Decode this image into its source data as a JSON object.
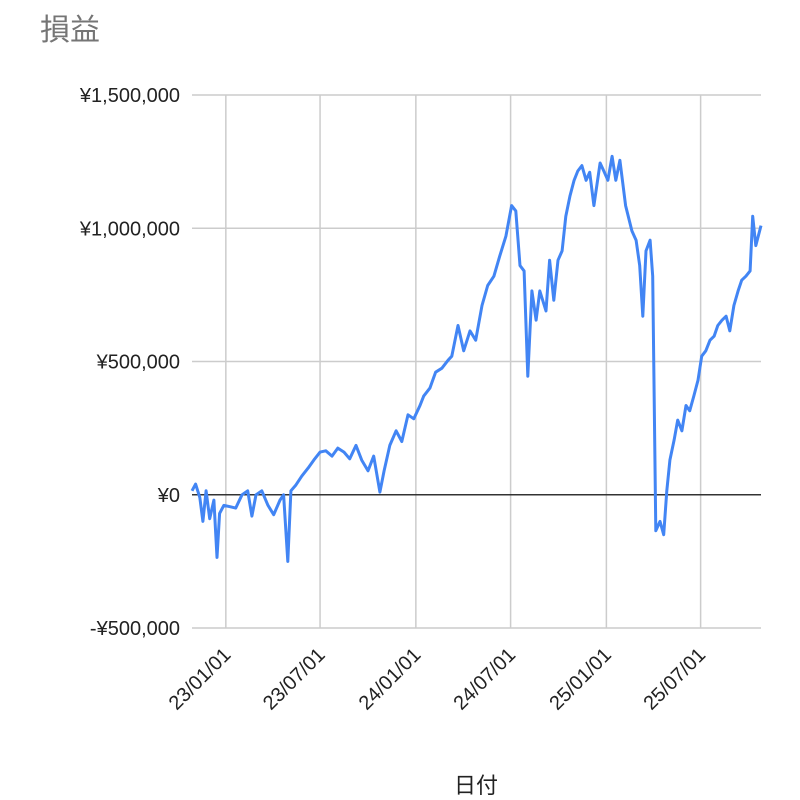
{
  "chart_data": {
    "type": "line",
    "title": "損益",
    "x_label": "日付",
    "x": [
      "22/10/28",
      "22/11/04",
      "22/11/12",
      "22/11/18",
      "22/11/24",
      "22/12/01",
      "22/12/09",
      "22/12/15",
      "22/12/20",
      "22/12/28",
      "23/01/09",
      "23/01/20",
      "23/02/01",
      "23/02/12",
      "23/02/20",
      "23/02/28",
      "23/03/11",
      "23/03/23",
      "23/04/03",
      "23/04/15",
      "23/04/22",
      "23/04/30",
      "23/05/06",
      "23/05/15",
      "23/05/27",
      "23/06/08",
      "23/06/19",
      "23/07/01",
      "23/07/12",
      "23/07/24",
      "23/08/04",
      "23/08/16",
      "23/08/27",
      "23/09/08",
      "23/09/19",
      "23/10/01",
      "23/10/12",
      "23/10/24",
      "23/11/01",
      "23/11/12",
      "23/11/24",
      "23/12/05",
      "23/12/17",
      "23/12/28",
      "24/01/09",
      "24/01/16",
      "24/01/28",
      "24/02/08",
      "24/02/20",
      "24/03/03",
      "24/03/10",
      "24/03/22",
      "24/04/02",
      "24/04/14",
      "24/04/25",
      "24/05/07",
      "24/05/18",
      "24/05/30",
      "24/06/10",
      "24/06/22",
      "24/07/03",
      "24/07/11",
      "24/07/19",
      "24/07/27",
      "24/08/03",
      "24/08/11",
      "24/08/19",
      "24/08/26",
      "24/09/07",
      "24/09/14",
      "24/09/22",
      "24/09/30",
      "24/10/08",
      "24/10/15",
      "24/10/23",
      "24/10/31",
      "24/11/07",
      "24/11/15",
      "24/11/23",
      "24/11/30",
      "24/12/08",
      "24/12/20",
      "24/12/27",
      "25/01/04",
      "25/01/12",
      "25/01/19",
      "25/01/27",
      "25/02/07",
      "25/02/19",
      "25/02/27",
      "25/03/06",
      "25/03/12",
      "25/03/18",
      "25/03/26",
      "25/03/31",
      "25/04/06",
      "25/04/14",
      "25/04/21",
      "25/04/27",
      "25/05/03",
      "25/05/11",
      "25/05/18",
      "25/05/26",
      "25/06/03",
      "25/06/10",
      "25/06/18",
      "25/06/26",
      "25/07/03",
      "25/07/11",
      "25/07/19",
      "25/07/27",
      "25/08/03",
      "25/08/11",
      "25/08/19",
      "25/08/26",
      "25/09/03",
      "25/09/11",
      "25/09/18",
      "25/09/26",
      "25/10/04",
      "25/10/09",
      "25/10/15",
      "25/10/25"
    ],
    "series": [
      {
        "name": "損益",
        "color": "#4285f4",
        "values": [
          15000,
          40000,
          -10000,
          -100000,
          15000,
          -90000,
          -20000,
          -235000,
          -70000,
          -40000,
          -45000,
          -50000,
          0,
          15000,
          -80000,
          0,
          15000,
          -40000,
          -75000,
          -20000,
          0,
          -250000,
          15000,
          35000,
          70000,
          100000,
          130000,
          160000,
          165000,
          145000,
          175000,
          160000,
          135000,
          185000,
          130000,
          90000,
          145000,
          10000,
          90000,
          185000,
          240000,
          200000,
          300000,
          285000,
          335000,
          370000,
          400000,
          460000,
          475000,
          505000,
          520000,
          635000,
          540000,
          615000,
          580000,
          710000,
          785000,
          820000,
          895000,
          970000,
          1085000,
          1065000,
          860000,
          840000,
          445000,
          765000,
          655000,
          765000,
          690000,
          880000,
          730000,
          880000,
          915000,
          1045000,
          1120000,
          1180000,
          1215000,
          1235000,
          1180000,
          1210000,
          1085000,
          1245000,
          1215000,
          1180000,
          1270000,
          1180000,
          1255000,
          1085000,
          990000,
          955000,
          860000,
          670000,
          915000,
          955000,
          820000,
          -135000,
          -100000,
          -150000,
          15000,
          130000,
          205000,
          280000,
          240000,
          335000,
          315000,
          370000,
          430000,
          520000,
          540000,
          580000,
          595000,
          635000,
          655000,
          670000,
          615000,
          710000,
          765000,
          805000,
          820000,
          840000,
          1045000,
          935000,
          1010000
        ]
      }
    ],
    "xlim": [
      "22/10/28",
      "25/10/25"
    ],
    "xticks": [
      "23/01/01",
      "23/07/01",
      "24/01/01",
      "24/07/01",
      "25/01/01",
      "25/07/01"
    ],
    "ylim": [
      -500000,
      1500000
    ],
    "yticks": [
      {
        "value": -500000,
        "label": "-¥500,000"
      },
      {
        "value": 0,
        "label": "¥0"
      },
      {
        "value": 500000,
        "label": "¥500,000"
      },
      {
        "value": 1000000,
        "label": "¥1,000,000"
      },
      {
        "value": 1500000,
        "label": "¥1,500,000"
      }
    ],
    "grid": true
  }
}
